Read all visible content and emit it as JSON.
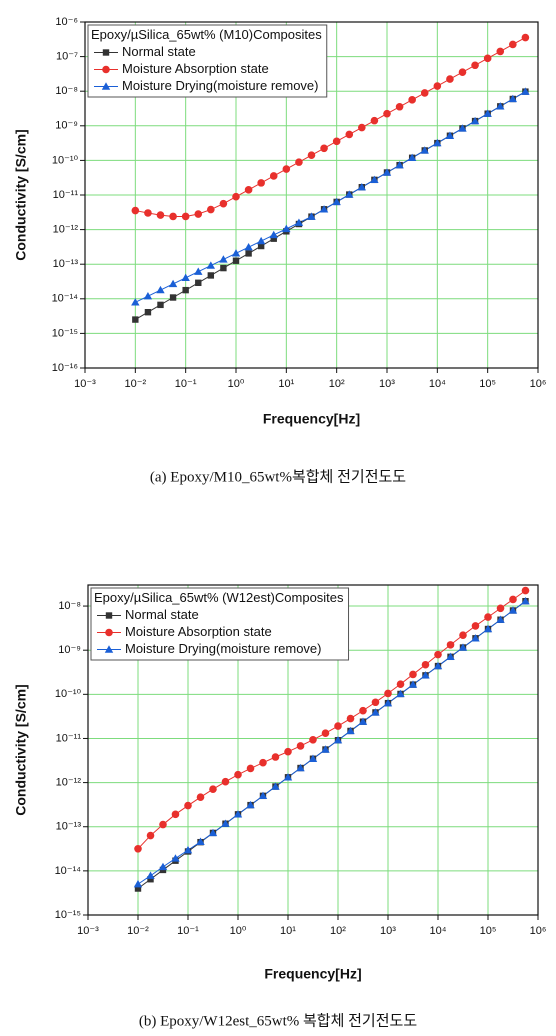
{
  "chart_data": [
    {
      "type": "line",
      "legend_title": "Epoxy/µSilica_65wt% (M10)Composites",
      "caption": "(a) Epoxy/M10_65wt%복합체 전기전도도",
      "x_label": "Frequency[Hz]",
      "y_label": "Conductivity [S/cm]",
      "x_log": true,
      "y_log": true,
      "grid": true,
      "grid_color": "#7ddc7d",
      "legend_position": "upper-left",
      "xlim": [
        0.001,
        1000000
      ],
      "ylim": [
        1e-16,
        1e-06
      ],
      "xticks": [
        {
          "value": 0.001,
          "label": "10⁻³"
        },
        {
          "value": 0.01,
          "label": "10⁻²"
        },
        {
          "value": 0.1,
          "label": "10⁻¹"
        },
        {
          "value": 1,
          "label": "10⁰"
        },
        {
          "value": 10,
          "label": "10¹"
        },
        {
          "value": 100,
          "label": "10²"
        },
        {
          "value": 1000,
          "label": "10³"
        },
        {
          "value": 10000,
          "label": "10⁴"
        },
        {
          "value": 100000,
          "label": "10⁵"
        },
        {
          "value": 1000000,
          "label": "10⁶"
        }
      ],
      "yticks": [
        {
          "value": 1e-16,
          "label": "10⁻¹⁶"
        },
        {
          "value": 1e-15,
          "label": "10⁻¹⁵"
        },
        {
          "value": 1e-14,
          "label": "10⁻¹⁴"
        },
        {
          "value": 1e-13,
          "label": "10⁻¹³"
        },
        {
          "value": 1e-12,
          "label": "10⁻¹²"
        },
        {
          "value": 1e-11,
          "label": "10⁻¹¹"
        },
        {
          "value": 1e-10,
          "label": "10⁻¹⁰"
        },
        {
          "value": 1e-09,
          "label": "10⁻⁹"
        },
        {
          "value": 1e-08,
          "label": "10⁻⁸"
        },
        {
          "value": 1e-07,
          "label": "10⁻⁷"
        },
        {
          "value": 1e-06,
          "label": "10⁻⁶"
        }
      ],
      "x": [
        0.01,
        0.0178,
        0.0316,
        0.0562,
        0.1,
        0.178,
        0.316,
        0.562,
        1,
        1.78,
        3.16,
        5.62,
        10,
        17.8,
        31.6,
        56.2,
        100,
        178,
        316,
        562,
        1000,
        1780,
        3160,
        5620,
        10000,
        17800,
        31600,
        56200,
        100000,
        178000,
        316000,
        562000
      ],
      "series": [
        {
          "name": "Normal state",
          "color": "#333333",
          "marker": "square",
          "values": [
            2.51e-15,
            4.1e-15,
            6.68e-15,
            1.09e-14,
            1.78e-14,
            2.9e-14,
            4.73e-14,
            7.72e-14,
            1.26e-13,
            2.05e-13,
            3.35e-13,
            5.46e-13,
            8.91e-13,
            1.45e-12,
            2.37e-12,
            3.87e-12,
            6.31e-12,
            1.03e-11,
            1.68e-11,
            2.74e-11,
            4.47e-11,
            7.29e-11,
            1.19e-10,
            1.94e-10,
            3.16e-10,
            5.16e-10,
            8.41e-10,
            1.37e-09,
            2.24e-09,
            3.65e-09,
            5.96e-09,
            9.72e-09
          ]
        },
        {
          "name": "Moisture Absorption state",
          "color": "#e8302c",
          "marker": "circle",
          "values": [
            3.55e-12,
            3.02e-12,
            2.63e-12,
            2.4e-12,
            2.4e-12,
            2.82e-12,
            3.8e-12,
            5.62e-12,
            8.91e-12,
            1.41e-11,
            2.24e-11,
            3.55e-11,
            5.62e-11,
            8.91e-11,
            1.41e-10,
            2.24e-10,
            3.55e-10,
            5.62e-10,
            8.91e-10,
            1.41e-09,
            2.24e-09,
            3.55e-09,
            5.62e-09,
            8.91e-09,
            1.41e-08,
            2.24e-08,
            3.55e-08,
            5.62e-08,
            8.91e-08,
            1.41e-07,
            2.24e-07,
            3.55e-07
          ]
        },
        {
          "name": "Moisture Drying(moisture remove)",
          "color": "#1a5fd6",
          "marker": "triangle",
          "values": [
            7.94e-15,
            1.19e-14,
            1.79e-14,
            2.69e-14,
            4.05e-14,
            6.08e-14,
            9.13e-14,
            1.37e-13,
            2.06e-13,
            3.1e-13,
            4.66e-13,
            6.99e-13,
            1.05e-12,
            1.58e-12,
            2.37e-12,
            3.87e-12,
            6.31e-12,
            1.03e-11,
            1.68e-11,
            2.74e-11,
            4.47e-11,
            7.29e-11,
            1.19e-10,
            1.94e-10,
            3.16e-10,
            5.16e-10,
            8.41e-10,
            1.37e-09,
            2.24e-09,
            3.65e-09,
            5.96e-09,
            9.72e-09
          ]
        }
      ]
    },
    {
      "type": "line",
      "legend_title": "Epoxy/µSilica_65wt% (W12est)Composites",
      "caption": "(b) Epoxy/W12est_65wt% 복합체 전기전도도",
      "x_label": "Frequency[Hz]",
      "y_label": "Conductivity [S/cm]",
      "x_log": true,
      "y_log": true,
      "grid": true,
      "grid_color": "#7ddc7d",
      "legend_position": "upper-left",
      "xlim": [
        0.001,
        1000000
      ],
      "ylim": [
        1e-15,
        3e-08
      ],
      "xticks": [
        {
          "value": 0.001,
          "label": "10⁻³"
        },
        {
          "value": 0.01,
          "label": "10⁻²"
        },
        {
          "value": 0.1,
          "label": "10⁻¹"
        },
        {
          "value": 1,
          "label": "10⁰"
        },
        {
          "value": 10,
          "label": "10¹"
        },
        {
          "value": 100,
          "label": "10²"
        },
        {
          "value": 1000,
          "label": "10³"
        },
        {
          "value": 10000,
          "label": "10⁴"
        },
        {
          "value": 100000,
          "label": "10⁵"
        },
        {
          "value": 1000000,
          "label": "10⁶"
        }
      ],
      "yticks": [
        {
          "value": 1e-15,
          "label": "10⁻¹⁵"
        },
        {
          "value": 1e-14,
          "label": "10⁻¹⁴"
        },
        {
          "value": 1e-13,
          "label": "10⁻¹³"
        },
        {
          "value": 1e-12,
          "label": "10⁻¹²"
        },
        {
          "value": 1e-11,
          "label": "10⁻¹¹"
        },
        {
          "value": 1e-10,
          "label": "10⁻¹⁰"
        },
        {
          "value": 1e-09,
          "label": "10⁻⁹"
        },
        {
          "value": 1e-08,
          "label": "10⁻⁸"
        }
      ],
      "x": [
        0.01,
        0.0178,
        0.0316,
        0.0562,
        0.1,
        0.178,
        0.316,
        0.562,
        1,
        1.78,
        3.16,
        5.62,
        10,
        17.8,
        31.6,
        56.2,
        100,
        178,
        316,
        562,
        1000,
        1780,
        3160,
        5620,
        10000,
        17800,
        31600,
        56200,
        100000,
        178000,
        316000,
        562000
      ],
      "series": [
        {
          "name": "Normal state",
          "color": "#333333",
          "marker": "square",
          "values": [
            3.98e-15,
            6.46e-15,
            1.05e-14,
            1.7e-14,
            2.75e-14,
            4.47e-14,
            7.24e-14,
            1.17e-13,
            1.91e-13,
            3.09e-13,
            5.01e-13,
            8.13e-13,
            1.32e-12,
            2.14e-12,
            3.47e-12,
            5.62e-12,
            9.12e-12,
            1.48e-11,
            2.4e-11,
            3.89e-11,
            6.31e-11,
            1.02e-10,
            1.66e-10,
            2.69e-10,
            4.37e-10,
            7.08e-10,
            1.15e-09,
            1.86e-09,
            3.02e-09,
            4.9e-09,
            7.94e-09,
            1.29e-08
          ]
        },
        {
          "name": "Moisture Absorption state",
          "color": "#e8302c",
          "marker": "circle",
          "values": [
            3.16e-14,
            6.31e-14,
            1.12e-13,
            1.91e-13,
            3.02e-13,
            4.68e-13,
            7.08e-13,
            1.05e-12,
            1.51e-12,
            2.09e-12,
            2.82e-12,
            3.8e-12,
            5.01e-12,
            6.76e-12,
            9.33e-12,
            1.32e-11,
            1.91e-11,
            2.82e-11,
            4.27e-11,
            6.61e-11,
            1.05e-10,
            1.7e-10,
            2.82e-10,
            4.68e-10,
            7.94e-10,
            1.32e-09,
            2.19e-09,
            3.55e-09,
            5.62e-09,
            8.91e-09,
            1.41e-08,
            2.24e-08
          ]
        },
        {
          "name": "Moisture Drying(moisture remove)",
          "color": "#1a5fd6",
          "marker": "triangle",
          "values": [
            5.01e-15,
            7.76e-15,
            1.23e-14,
            1.91e-14,
            2.95e-14,
            4.57e-14,
            7.24e-14,
            1.17e-13,
            1.91e-13,
            3.09e-13,
            5.01e-13,
            8.13e-13,
            1.32e-12,
            2.14e-12,
            3.47e-12,
            5.62e-12,
            9.12e-12,
            1.48e-11,
            2.4e-11,
            3.89e-11,
            6.31e-11,
            1.02e-10,
            1.66e-10,
            2.69e-10,
            4.37e-10,
            7.08e-10,
            1.15e-09,
            1.86e-09,
            3.02e-09,
            4.9e-09,
            7.94e-09,
            1.29e-08
          ]
        }
      ]
    }
  ]
}
